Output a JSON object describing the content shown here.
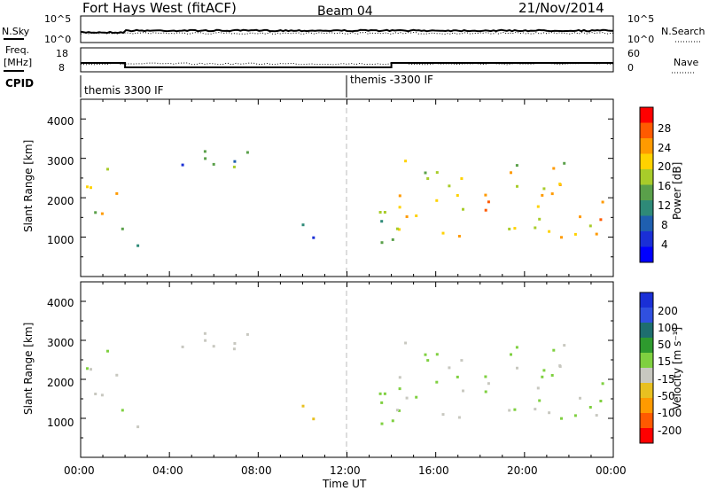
{
  "header": {
    "station": "Fort Hays West (fitACF)",
    "beam": "Beam 04",
    "date": "21/Nov/2014"
  },
  "top_panel": {
    "left_label": "N.Sky",
    "right_label": "N.Search",
    "left_ticks": [
      "10^5",
      "10^0"
    ],
    "right_ticks": [
      "10^5",
      "10^0"
    ]
  },
  "freq_panel": {
    "left_label_1": "Freq.",
    "left_label_2": "[MHz]",
    "right_label": "Nave",
    "left_ticks": [
      "18",
      "8"
    ],
    "right_ticks": [
      "60",
      "0"
    ]
  },
  "cpid": {
    "label": "CPID",
    "mode_1": "themis 3300 IF",
    "mode_2": "themis -3300 IF"
  },
  "power_panel": {
    "ylabel": "Slant Range [km]",
    "yticks": [
      "4000",
      "3000",
      "2000",
      "1000"
    ],
    "colorbar_label": "Power [dB]",
    "colorbar_ticks": [
      "28",
      "24",
      "20",
      "16",
      "12",
      "8",
      "4"
    ],
    "colorbar_colors": [
      "#ff0000",
      "#ff5a00",
      "#ff9a00",
      "#ffd200",
      "#a8cc2a",
      "#5aa04a",
      "#2e8a78",
      "#1f5fb0",
      "#1a2fd6",
      "#0000ff"
    ]
  },
  "velocity_panel": {
    "ylabel": "Slant Range [km]",
    "yticks": [
      "4000",
      "3000",
      "2000",
      "1000"
    ],
    "colorbar_label": "Velocity [m s⁻¹]",
    "colorbar_ticks": [
      "200",
      "100",
      "50",
      "15",
      "-15",
      "-50",
      "-100",
      "-200"
    ],
    "colorbar_colors": [
      "#1a2fd6",
      "#3050e0",
      "#1e6e6e",
      "#2e9a2e",
      "#7fd040",
      "#c8c8c0",
      "#e8c020",
      "#ff9a00",
      "#ff5a00",
      "#ff0000"
    ]
  },
  "xaxis": {
    "label": "Time UT",
    "ticks": [
      "00:00",
      "04:00",
      "08:00",
      "12:00",
      "16:00",
      "20:00",
      "00:00"
    ]
  },
  "chart_data": {
    "type": "heatmap",
    "title": "Fort Hays West (fitACF)",
    "xlabel": "Time UT",
    "ylabel": "Slant Range [km]",
    "xlim": [
      0,
      24
    ],
    "ylim": [
      0,
      4500
    ],
    "cpid_changes_hours": [
      0,
      12
    ],
    "frequency_mhz": {
      "segments": [
        {
          "from": 0,
          "to": 2,
          "value": 12
        },
        {
          "from": 2,
          "to": 14,
          "value": 10
        },
        {
          "from": 14,
          "to": 24,
          "value": 12
        }
      ]
    },
    "power_db_range": [
      0,
      30
    ],
    "velocity_range": [
      -250,
      250
    ],
    "echo_regions": [
      {
        "t0": 0.0,
        "t1": 2.0,
        "r0": 1500,
        "r1": 2800,
        "power": 18,
        "velocity": -20
      },
      {
        "t0": 1.8,
        "t1": 2.6,
        "r0": 1200,
        "r1": 1600,
        "power": 16,
        "velocity": -10
      },
      {
        "t0": 1.8,
        "t1": 2.6,
        "r0": 600,
        "r1": 900,
        "power": 8,
        "velocity": -20
      },
      {
        "t0": 4.0,
        "t1": 5.0,
        "r0": 2400,
        "r1": 3000,
        "power": 6,
        "velocity": -60
      },
      {
        "t0": 5.5,
        "t1": 7.5,
        "r0": 2000,
        "r1": 3400,
        "power": 12,
        "velocity": -40
      },
      {
        "t0": 9.5,
        "t1": 11.0,
        "r0": 900,
        "r1": 1500,
        "power": 6,
        "velocity": -80
      },
      {
        "t0": 13.0,
        "t1": 14.2,
        "r0": 800,
        "r1": 2800,
        "power": 14,
        "velocity": 30
      },
      {
        "t0": 14.2,
        "t1": 24.0,
        "r0": 1000,
        "r1": 3000,
        "power": 20,
        "velocity": 0
      }
    ]
  }
}
